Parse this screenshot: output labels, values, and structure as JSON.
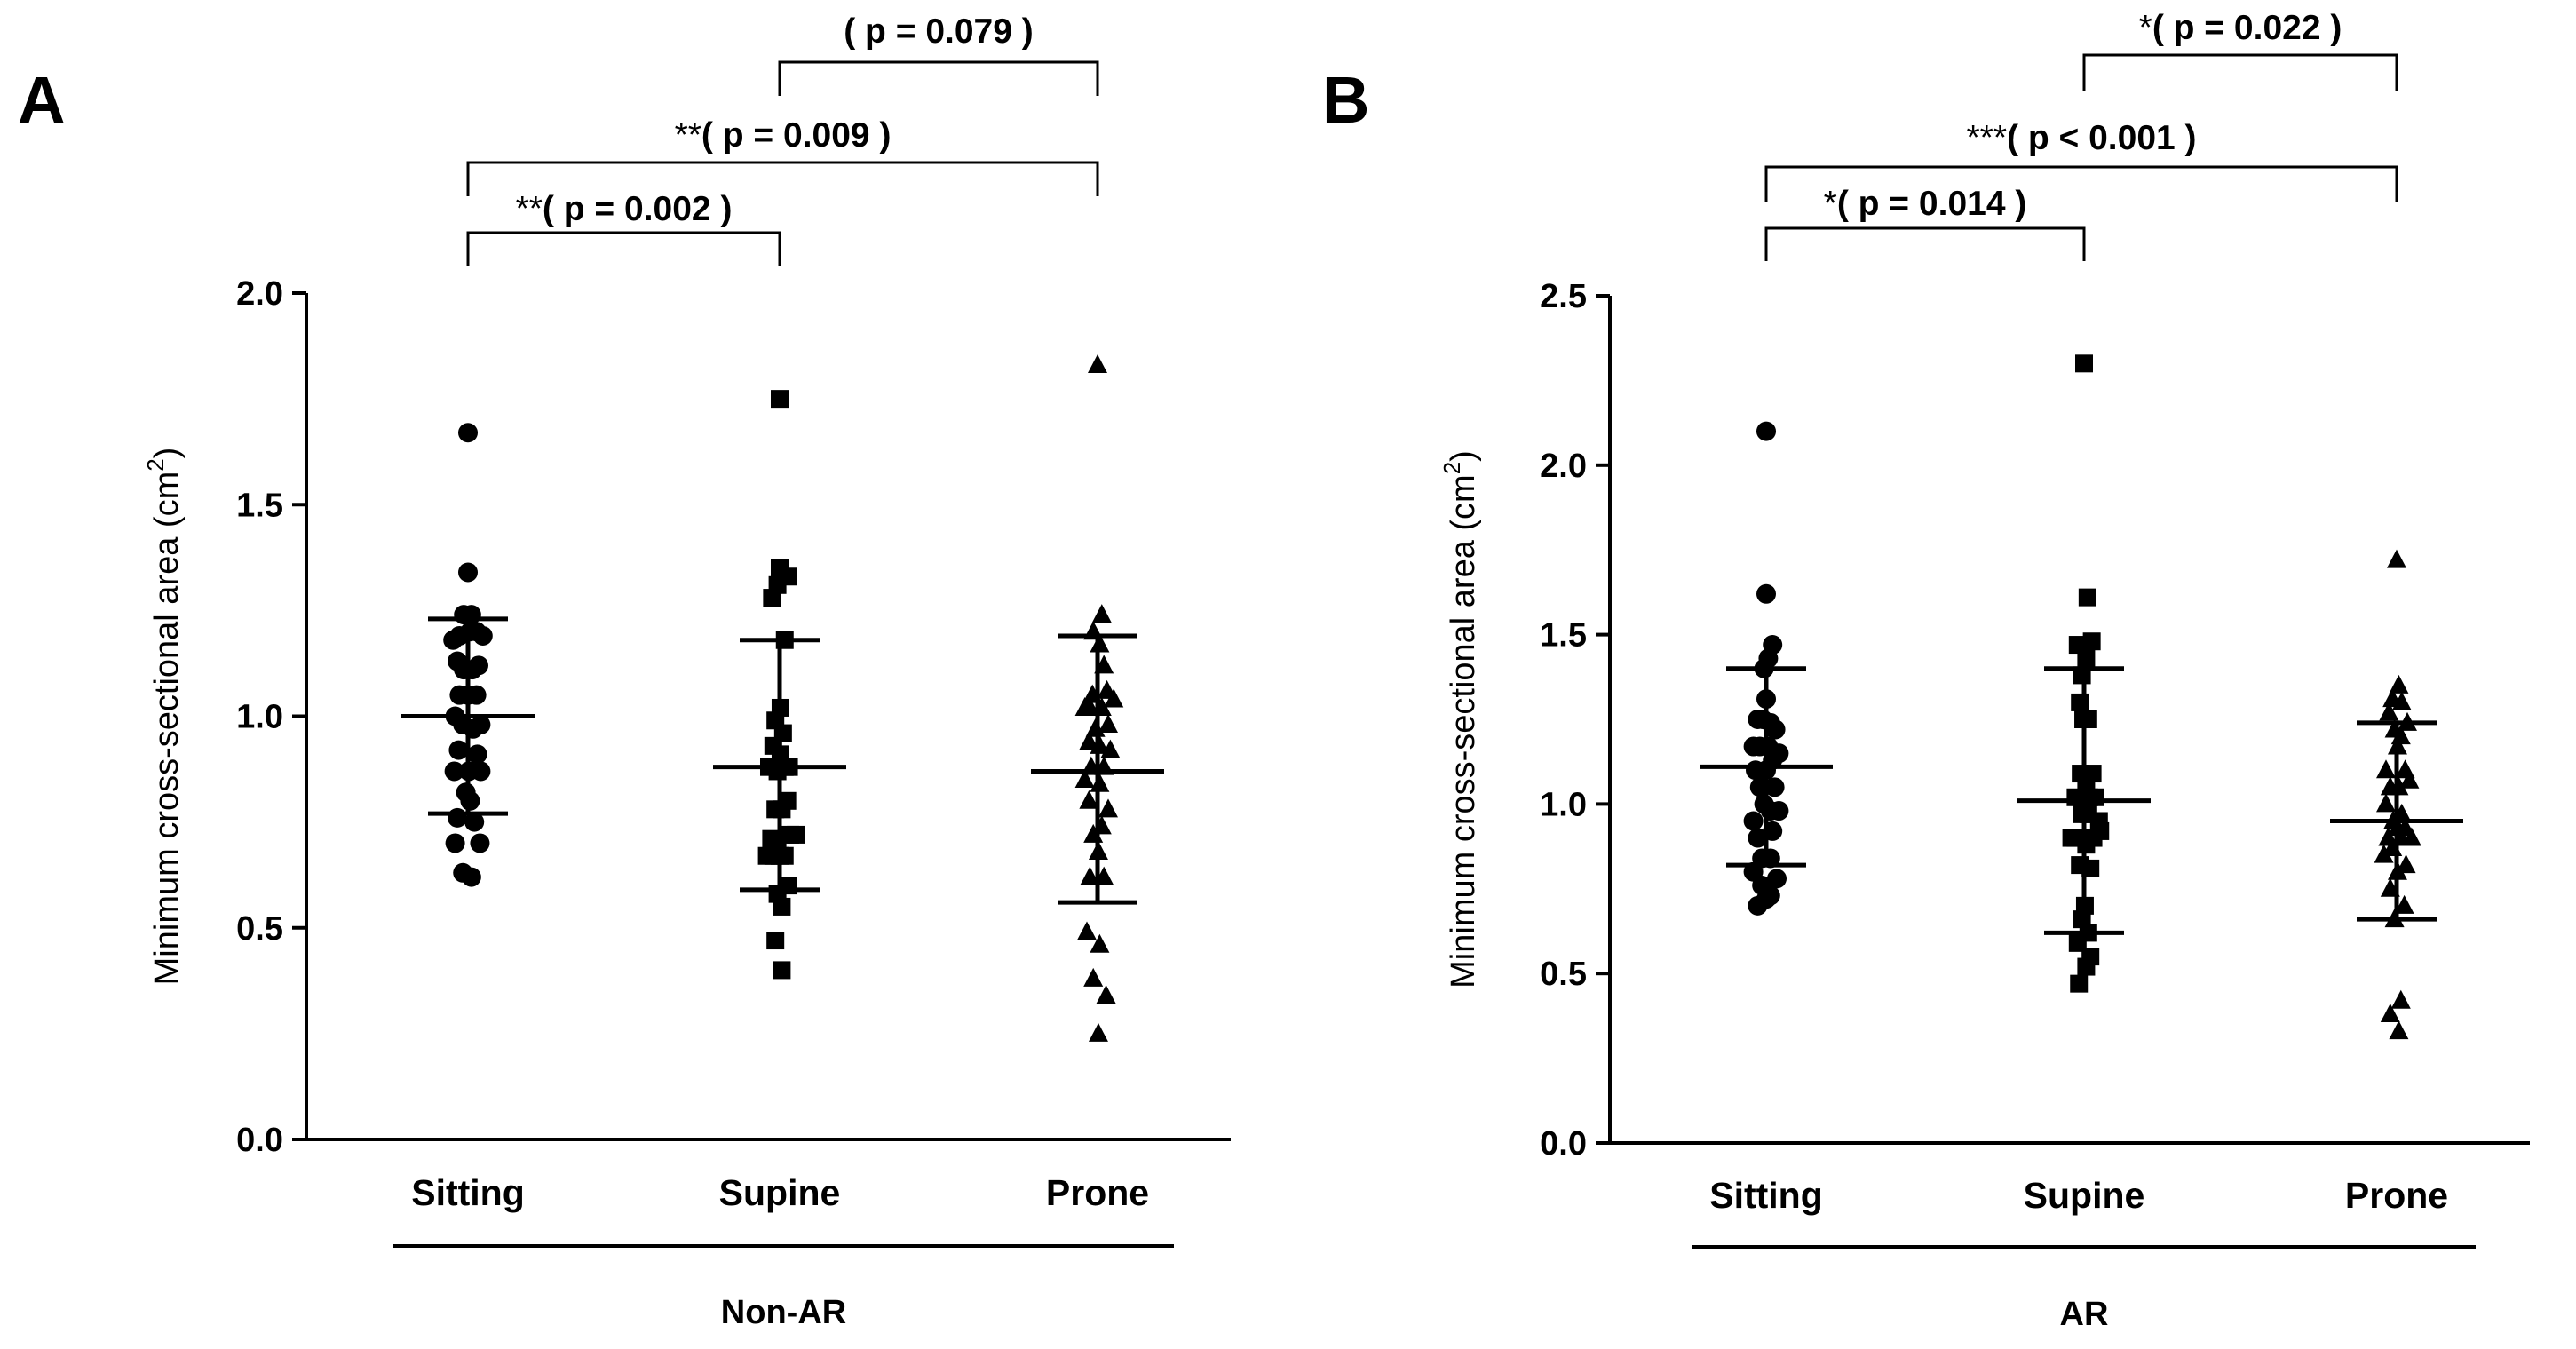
{
  "figure": {
    "ylabel_main": "Minimum cross-sectional area (cm",
    "ylabel_sup": "2",
    "ylabel_close": ")"
  },
  "chart_data": [
    {
      "type": "scatter",
      "panel": "A",
      "title": "",
      "group_label": "Non-AR",
      "categories": [
        "Sitting",
        "Supine",
        "Prone"
      ],
      "markers": [
        "circle",
        "square",
        "triangle"
      ],
      "color": "#000000",
      "ylabel": "Minimum cross-sectional area (cm2)",
      "ylim": [
        0,
        2.0
      ],
      "yticks": [
        0.0,
        0.5,
        1.0,
        1.5,
        2.0
      ],
      "ytick_labels": [
        "0.0",
        "0.5",
        "1.0",
        "1.5",
        "2.0"
      ],
      "series": [
        {
          "name": "Sitting",
          "mean": 1.0,
          "sd_low": 0.77,
          "sd_high": 1.23,
          "points": [
            [
              0,
              1.67
            ],
            [
              0,
              1.34
            ],
            [
              -0.1,
              1.24
            ],
            [
              0.08,
              1.24
            ],
            [
              -0.35,
              1.18
            ],
            [
              -0.2,
              1.19
            ],
            [
              0.05,
              1.2
            ],
            [
              0.2,
              1.2
            ],
            [
              0.35,
              1.19
            ],
            [
              -0.25,
              1.13
            ],
            [
              -0.1,
              1.11
            ],
            [
              0.1,
              1.11
            ],
            [
              0.25,
              1.12
            ],
            [
              -0.2,
              1.05
            ],
            [
              0,
              1.05
            ],
            [
              0.2,
              1.05
            ],
            [
              -0.3,
              1.0
            ],
            [
              -0.12,
              0.98
            ],
            [
              0.12,
              0.97
            ],
            [
              0.3,
              0.98
            ],
            [
              -0.22,
              0.92
            ],
            [
              0.22,
              0.91
            ],
            [
              -0.32,
              0.87
            ],
            [
              0.02,
              0.87
            ],
            [
              0.3,
              0.87
            ],
            [
              -0.05,
              0.82
            ],
            [
              0.05,
              0.8
            ],
            [
              -0.25,
              0.76
            ],
            [
              0.15,
              0.75
            ],
            [
              -0.3,
              0.7
            ],
            [
              0.28,
              0.7
            ],
            [
              -0.12,
              0.63
            ],
            [
              0.08,
              0.62
            ]
          ]
        },
        {
          "name": "Supine",
          "mean": 0.88,
          "sd_low": 0.59,
          "sd_high": 1.18,
          "points": [
            [
              0,
              1.75
            ],
            [
              0,
              1.35
            ],
            [
              0.2,
              1.33
            ],
            [
              -0.05,
              1.31
            ],
            [
              -0.18,
              1.28
            ],
            [
              0.12,
              1.18
            ],
            [
              0.02,
              1.02
            ],
            [
              -0.1,
              0.99
            ],
            [
              0.08,
              0.96
            ],
            [
              -0.15,
              0.93
            ],
            [
              0.02,
              0.91
            ],
            [
              -0.25,
              0.88
            ],
            [
              -0.05,
              0.87
            ],
            [
              0.12,
              0.88
            ],
            [
              0.22,
              0.88
            ],
            [
              0.18,
              0.8
            ],
            [
              -0.1,
              0.78
            ],
            [
              0.05,
              0.78
            ],
            [
              0.25,
              0.72
            ],
            [
              -0.2,
              0.71
            ],
            [
              0.38,
              0.72
            ],
            [
              -0.05,
              0.7
            ],
            [
              -0.3,
              0.67
            ],
            [
              0.12,
              0.67
            ],
            [
              -0.15,
              0.67
            ],
            [
              0,
              0.67
            ],
            [
              0.2,
              0.6
            ],
            [
              -0.05,
              0.58
            ],
            [
              0.05,
              0.55
            ],
            [
              -0.1,
              0.47
            ],
            [
              0.05,
              0.4
            ]
          ]
        },
        {
          "name": "Prone",
          "mean": 0.87,
          "sd_low": 0.56,
          "sd_high": 1.19,
          "points": [
            [
              0,
              1.83
            ],
            [
              0.1,
              1.24
            ],
            [
              -0.1,
              1.2
            ],
            [
              0.05,
              1.17
            ],
            [
              0.15,
              1.12
            ],
            [
              0.22,
              1.06
            ],
            [
              -0.12,
              1.05
            ],
            [
              -0.3,
              1.02
            ],
            [
              -0.18,
              1.02
            ],
            [
              0.38,
              1.04
            ],
            [
              0.1,
              1.02
            ],
            [
              0.25,
              0.98
            ],
            [
              -0.05,
              0.97
            ],
            [
              -0.2,
              0.94
            ],
            [
              0.05,
              0.93
            ],
            [
              0.3,
              0.92
            ],
            [
              -0.15,
              0.88
            ],
            [
              0.15,
              0.88
            ],
            [
              -0.3,
              0.85
            ],
            [
              0.05,
              0.84
            ],
            [
              -0.2,
              0.8
            ],
            [
              0.25,
              0.78
            ],
            [
              0.1,
              0.74
            ],
            [
              -0.1,
              0.72
            ],
            [
              0.02,
              0.68
            ],
            [
              -0.18,
              0.62
            ],
            [
              0.15,
              0.62
            ],
            [
              0.05,
              0.46
            ],
            [
              -0.25,
              0.49
            ],
            [
              -0.1,
              0.38
            ],
            [
              0.2,
              0.34
            ],
            [
              0.02,
              0.25
            ]
          ]
        }
      ],
      "comparisons": [
        {
          "from": 0,
          "to": 1,
          "stars": "**",
          "p_text": "( p = 0.002 )"
        },
        {
          "from": 0,
          "to": 2,
          "stars": "**",
          "p_text": "( p = 0.009 )"
        },
        {
          "from": 1,
          "to": 2,
          "stars": "",
          "p_text": "( p = 0.079 )"
        }
      ]
    },
    {
      "type": "scatter",
      "panel": "B",
      "title": "",
      "group_label": "AR",
      "categories": [
        "Sitting",
        "Supine",
        "Prone"
      ],
      "markers": [
        "circle",
        "square",
        "triangle"
      ],
      "color": "#000000",
      "ylabel": "Minimum cross-sectional area (cm2)",
      "ylim": [
        0,
        2.5
      ],
      "yticks": [
        0.0,
        0.5,
        1.0,
        1.5,
        2.0,
        2.5
      ],
      "ytick_labels": [
        "0.0",
        "0.5",
        "1.0",
        "1.5",
        "2.0",
        "2.5"
      ],
      "series": [
        {
          "name": "Sitting",
          "mean": 1.11,
          "sd_low": 0.82,
          "sd_high": 1.4,
          "points": [
            [
              0,
              2.1
            ],
            [
              0,
              1.62
            ],
            [
              0.15,
              1.47
            ],
            [
              0.05,
              1.43
            ],
            [
              -0.05,
              1.4
            ],
            [
              0,
              1.31
            ],
            [
              -0.2,
              1.25
            ],
            [
              -0.08,
              1.25
            ],
            [
              0.1,
              1.24
            ],
            [
              0.22,
              1.22
            ],
            [
              -0.3,
              1.17
            ],
            [
              -0.15,
              1.17
            ],
            [
              0.05,
              1.17
            ],
            [
              0.3,
              1.15
            ],
            [
              0.15,
              1.13
            ],
            [
              -0.25,
              1.1
            ],
            [
              0,
              1.1
            ],
            [
              -0.15,
              1.05
            ],
            [
              0.2,
              1.05
            ],
            [
              -0.05,
              1.0
            ],
            [
              0.1,
              0.98
            ],
            [
              0.3,
              0.98
            ],
            [
              -0.3,
              0.95
            ],
            [
              0.15,
              0.92
            ],
            [
              -0.2,
              0.9
            ],
            [
              -0.1,
              0.84
            ],
            [
              0.1,
              0.84
            ],
            [
              -0.3,
              0.8
            ],
            [
              0.25,
              0.78
            ],
            [
              -0.1,
              0.76
            ],
            [
              0.1,
              0.73
            ],
            [
              0,
              0.72
            ],
            [
              -0.2,
              0.7
            ]
          ]
        },
        {
          "name": "Supine",
          "mean": 1.01,
          "sd_low": 0.62,
          "sd_high": 1.4,
          "points": [
            [
              0,
              2.3
            ],
            [
              0.08,
              1.61
            ],
            [
              -0.15,
              1.47
            ],
            [
              0.18,
              1.48
            ],
            [
              0.05,
              1.43
            ],
            [
              -0.05,
              1.38
            ],
            [
              0.1,
              1.25
            ],
            [
              -0.1,
              1.3
            ],
            [
              -0.02,
              1.25
            ],
            [
              0.2,
              1.09
            ],
            [
              -0.08,
              1.09
            ],
            [
              0.05,
              1.05
            ],
            [
              -0.2,
              1.02
            ],
            [
              0.12,
              1.02
            ],
            [
              0.25,
              1.02
            ],
            [
              -0.05,
              0.97
            ],
            [
              0.1,
              0.97
            ],
            [
              0.35,
              0.95
            ],
            [
              -0.3,
              0.9
            ],
            [
              -0.2,
              0.9
            ],
            [
              0.05,
              0.88
            ],
            [
              0.22,
              0.9
            ],
            [
              0.38,
              0.92
            ],
            [
              -0.1,
              0.82
            ],
            [
              0.15,
              0.81
            ],
            [
              0.02,
              0.7
            ],
            [
              -0.05,
              0.66
            ],
            [
              0.1,
              0.62
            ],
            [
              -0.15,
              0.59
            ],
            [
              0.15,
              0.55
            ],
            [
              0.05,
              0.52
            ],
            [
              -0.12,
              0.47
            ]
          ]
        },
        {
          "name": "Prone",
          "mean": 0.95,
          "sd_low": 0.66,
          "sd_high": 1.24,
          "points": [
            [
              0,
              1.72
            ],
            [
              0.05,
              1.35
            ],
            [
              -0.1,
              1.31
            ],
            [
              0.12,
              1.3
            ],
            [
              -0.18,
              1.27
            ],
            [
              0.25,
              1.24
            ],
            [
              -0.05,
              1.22
            ],
            [
              0.1,
              1.2
            ],
            [
              0.02,
              1.17
            ],
            [
              -0.25,
              1.1
            ],
            [
              0.2,
              1.1
            ],
            [
              0.3,
              1.07
            ],
            [
              -0.15,
              1.05
            ],
            [
              0.05,
              1.05
            ],
            [
              -0.25,
              1.0
            ],
            [
              0.12,
              0.97
            ],
            [
              -0.08,
              0.95
            ],
            [
              0.02,
              0.93
            ],
            [
              0.2,
              0.93
            ],
            [
              -0.2,
              0.9
            ],
            [
              0.1,
              0.9
            ],
            [
              0.35,
              0.9
            ],
            [
              -0.1,
              0.87
            ],
            [
              -0.3,
              0.85
            ],
            [
              0.22,
              0.82
            ],
            [
              0.02,
              0.8
            ],
            [
              -0.15,
              0.75
            ],
            [
              0.18,
              0.7
            ],
            [
              -0.05,
              0.66
            ],
            [
              0.1,
              0.42
            ],
            [
              -0.15,
              0.38
            ],
            [
              0.05,
              0.33
            ]
          ]
        }
      ],
      "comparisons": [
        {
          "from": 0,
          "to": 1,
          "stars": "*",
          "p_text": "( p = 0.014 )"
        },
        {
          "from": 0,
          "to": 2,
          "stars": "***",
          "p_text": "( p < 0.001 )"
        },
        {
          "from": 1,
          "to": 2,
          "stars": "*",
          "p_text": "( p = 0.022 )"
        }
      ]
    }
  ]
}
